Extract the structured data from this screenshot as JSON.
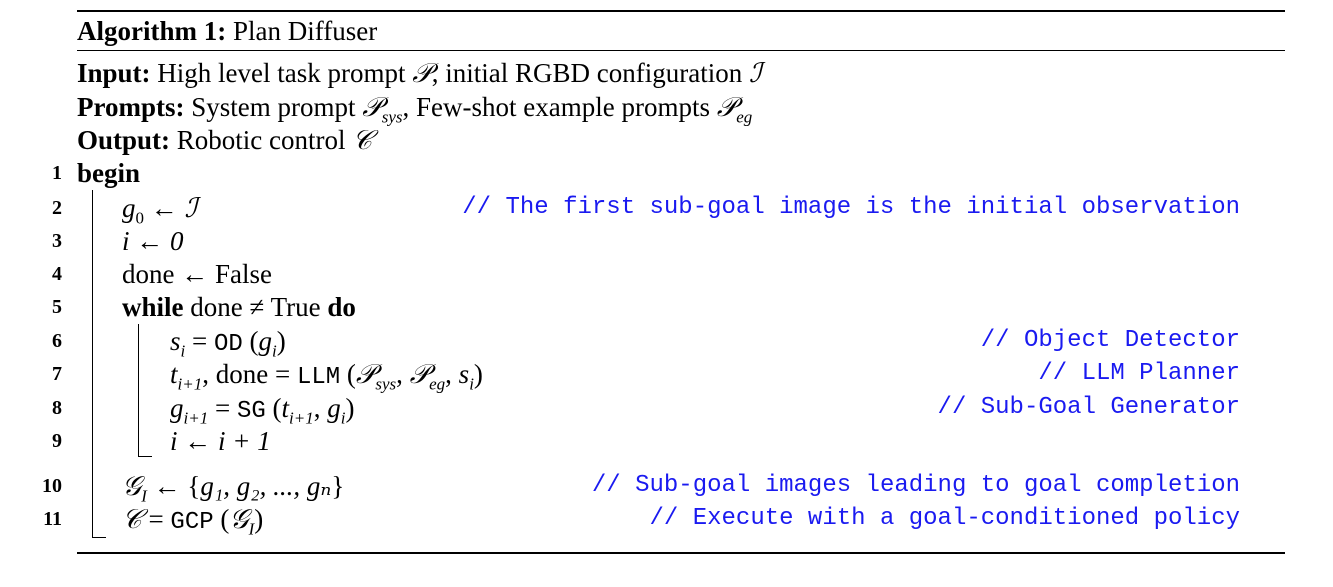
{
  "algorithm": {
    "label": "Algorithm 1:",
    "title": "Plan Diffuser"
  },
  "header": {
    "input_label": "Input:",
    "input_text_a": "High level task prompt ",
    "input_sym_p": "𝒫",
    "input_text_b": ", initial RGBD configuration ",
    "input_sym_i": "ℐ",
    "prompts_label": "Prompts:",
    "prompts_text_a": "System prompt ",
    "prompts_sym": "𝒫",
    "prompts_sub_sys": "sys",
    "prompts_text_b": ", Few-shot example prompts ",
    "prompts_sym2": "𝒫",
    "prompts_sub_eg": "eg",
    "output_label": "Output:",
    "output_text": "Robotic control ",
    "output_sym": "𝒞"
  },
  "lines": {
    "n1": "1",
    "n2": "2",
    "n3": "3",
    "n4": "4",
    "n5": "5",
    "n6": "6",
    "n7": "7",
    "n8": "8",
    "n9": "9",
    "n10": "10",
    "n11": "11",
    "begin": "begin",
    "l2_g": "g",
    "l2_sub": "0",
    "l2_arrow": " ← ",
    "l2_i": "ℐ",
    "l3": "i ← 0",
    "l4": "done ← False",
    "l5_while": "while",
    "l5_cond": " done ≠ True ",
    "l5_do": "do",
    "l6_s": "s",
    "l6_sub": "i",
    "l6_eq": " = ",
    "l6_fn": "OD",
    "l6_args_a": " (",
    "l6_g": "g",
    "l6_gsub": "i",
    "l6_args_b": ")",
    "l7_t": "t",
    "l7_tsub": "i+1",
    "l7_mid": ", done = ",
    "l7_fn": "LLM",
    "l7_open": " (",
    "l7_p1": "𝒫",
    "l7_p1sub": "sys",
    "l7_sep1": ", ",
    "l7_p2": "𝒫",
    "l7_p2sub": "eg",
    "l7_sep2": ", ",
    "l7_s": "s",
    "l7_ssub": "i",
    "l7_close": ")",
    "l8_g": "g",
    "l8_gsub": "i+1",
    "l8_eq": " = ",
    "l8_fn": "SG",
    "l8_open": " (",
    "l8_t": "t",
    "l8_tsub": "i+1",
    "l8_sep": ", ",
    "l8_g2": "g",
    "l8_g2sub": "i",
    "l8_close": ")",
    "l9": "i ← i + 1",
    "l10_g": "𝒢",
    "l10_sub": "I",
    "l10_mid": " ← {",
    "l10_set": "g₁, g₂, ..., gₙ",
    "l10_close": "}",
    "l11_c": "𝒞",
    "l11_eq": " = ",
    "l11_fn": "GCP",
    "l11_open": " (",
    "l11_g": "𝒢",
    "l11_gsub": "I",
    "l11_close": ")"
  },
  "comments": {
    "c2": "// The first sub-goal image is the initial observation",
    "c6": "// Object Detector",
    "c7": "// LLM Planner",
    "c8": "// Sub-Goal Generator",
    "c10": "// Sub-goal images leading to goal completion",
    "c11": "// Execute with a goal-conditioned policy"
  },
  "colors": {
    "comment": "#1a1af0",
    "text": "#000000"
  }
}
